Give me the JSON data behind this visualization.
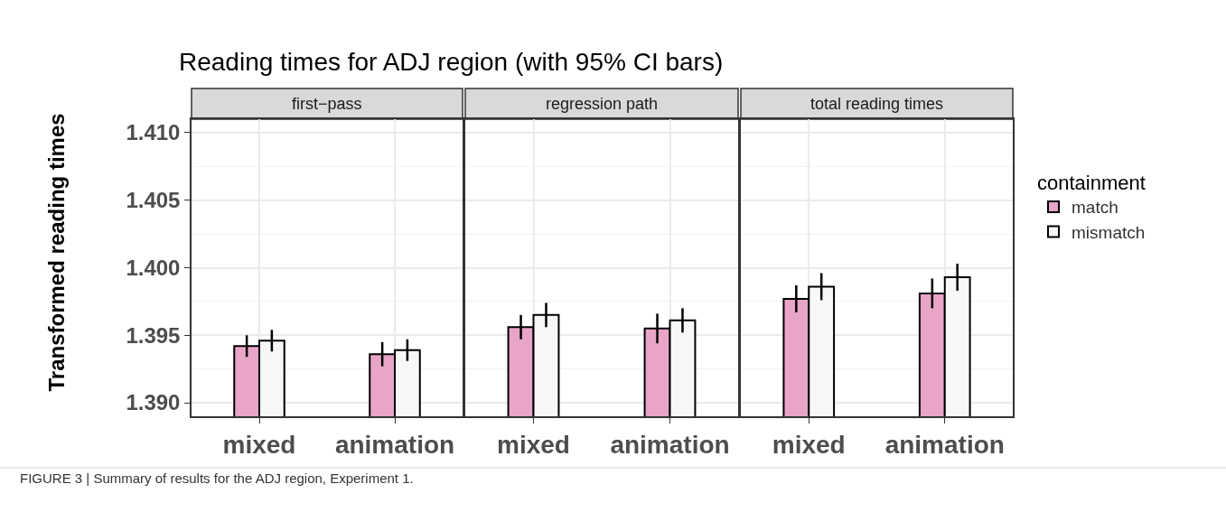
{
  "chart_data": [
    {
      "type": "bar",
      "title": "Reading times for ADJ region (with 95% CI bars)",
      "subtitle": "first−pass",
      "ylabel": "Transformed reading times",
      "annotations": [
        "FIGURE 3 | Summary of results for the ADJ region, Experiment 1."
      ],
      "categories": [
        "mixed",
        "animation"
      ],
      "ylim": [
        1.389,
        1.411
      ],
      "yticks": [
        {
          "value": 1.39,
          "label": "1.390"
        },
        1.395,
        {
          "value": 1.4,
          "label": "1.400"
        },
        1.405,
        {
          "value": 1.41,
          "label": "1.410"
        }
      ],
      "grid": true,
      "legend": "right",
      "legend_title": "containment",
      "series": [
        {
          "name": "match",
          "color": "#e8a5c8",
          "values": [
            1.3942,
            1.3936
          ],
          "errors": [
            0.0008,
            0.0009
          ]
        },
        {
          "name": "mismatch",
          "color": "#f7f7f7",
          "values": [
            1.3946,
            1.3939
          ],
          "errors": [
            0.0008,
            0.0008
          ]
        }
      ]
    },
    {
      "type": "bar",
      "subtitle": "regression path",
      "categories": [
        "mixed",
        "animation"
      ],
      "ylim": [
        1.389,
        1.411
      ],
      "yticks": [
        1.39,
        1.395,
        1.4,
        1.405,
        1.41
      ],
      "grid": true,
      "legend": "right",
      "tick_labels": "x",
      "series": [
        {
          "name": "match",
          "color": "#e8a5c8",
          "values": [
            1.3956,
            1.3955
          ],
          "errors": [
            0.0009,
            0.0011
          ]
        },
        {
          "name": "mismatch",
          "color": "#f7f7f7",
          "values": [
            1.3965,
            1.3961
          ],
          "errors": [
            0.0009,
            0.0009
          ]
        }
      ]
    },
    {
      "type": "bar",
      "subtitle": "total reading times",
      "categories": [
        "mixed",
        "animation"
      ],
      "ylim": [
        1.389,
        1.411
      ],
      "yticks": [
        1.39,
        1.395,
        1.4,
        1.405,
        1.41
      ],
      "grid": true,
      "legend": "right",
      "tick_labels": "x",
      "series": [
        {
          "name": "match",
          "color": "#e8a5c8",
          "values": [
            1.3977,
            1.3981
          ],
          "errors": [
            0.001,
            0.0011
          ]
        },
        {
          "name": "mismatch",
          "color": "#f7f7f7",
          "values": [
            1.3986,
            1.3993
          ],
          "errors": [
            0.001,
            0.001
          ]
        }
      ]
    }
  ]
}
